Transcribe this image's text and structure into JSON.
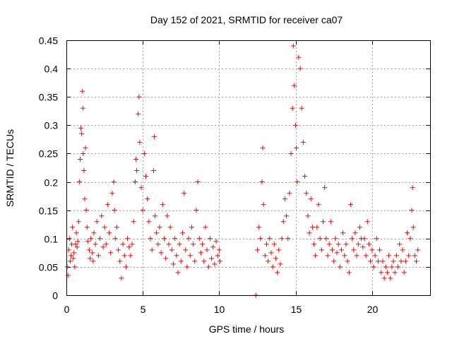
{
  "chart_data": {
    "type": "scatter",
    "title": "Day 152 of 2021, SRMTID for receiver ca07",
    "xlabel": "GPS time / hours",
    "ylabel": "SRMTID / TECUs",
    "xlim": [
      0,
      23.8
    ],
    "ylim": [
      0,
      0.45
    ],
    "xticks": [
      0,
      5,
      10,
      15,
      20
    ],
    "xtick_labels": [
      "0",
      "5",
      "10",
      "15",
      "20"
    ],
    "yticks": [
      0,
      0.05,
      0.1,
      0.15,
      0.2,
      0.25,
      0.3,
      0.35,
      0.4,
      0.45
    ],
    "ytick_labels": [
      "0",
      "0.05",
      "0.1",
      "0.15",
      "0.2",
      "0.25",
      "0.3",
      "0.35",
      "0.4",
      "0.45"
    ],
    "grid": true,
    "marker": "plus",
    "color": "#ff0000",
    "series": [
      {
        "name": "SRMTID",
        "points": [
          [
            0.05,
            0.05
          ],
          [
            0.1,
            0.035
          ],
          [
            0.15,
            0.08
          ],
          [
            0.2,
            0.1
          ],
          [
            0.25,
            0.06
          ],
          [
            0.3,
            0.07
          ],
          [
            0.35,
            0.09
          ],
          [
            0.4,
            0.12
          ],
          [
            0.45,
            0.065
          ],
          [
            0.5,
            0.075
          ],
          [
            0.55,
            0.05
          ],
          [
            0.6,
            0.09
          ],
          [
            0.65,
            0.11
          ],
          [
            0.7,
            0.085
          ],
          [
            0.75,
            0.095
          ],
          [
            0.8,
            0.13
          ],
          [
            0.85,
            0.2
          ],
          [
            0.9,
            0.24
          ],
          [
            0.95,
            0.295
          ],
          [
            1.0,
            0.285
          ],
          [
            1.05,
            0.36
          ],
          [
            1.08,
            0.33
          ],
          [
            1.1,
            0.25
          ],
          [
            1.15,
            0.22
          ],
          [
            1.2,
            0.17
          ],
          [
            1.25,
            0.26
          ],
          [
            1.3,
            0.15
          ],
          [
            1.35,
            0.12
          ],
          [
            1.4,
            0.095
          ],
          [
            1.5,
            0.08
          ],
          [
            1.55,
            0.065
          ],
          [
            1.6,
            0.1
          ],
          [
            1.7,
            0.075
          ],
          [
            1.75,
            0.06
          ],
          [
            1.8,
            0.11
          ],
          [
            1.9,
            0.09
          ],
          [
            2.0,
            0.13
          ],
          [
            2.1,
            0.07
          ],
          [
            2.2,
            0.1
          ],
          [
            2.3,
            0.14
          ],
          [
            2.4,
            0.085
          ],
          [
            2.5,
            0.12
          ],
          [
            2.6,
            0.09
          ],
          [
            2.7,
            0.16
          ],
          [
            2.8,
            0.11
          ],
          [
            2.9,
            0.075
          ],
          [
            3.0,
            0.18
          ],
          [
            3.1,
            0.2
          ],
          [
            3.15,
            0.15
          ],
          [
            3.2,
            0.1
          ],
          [
            3.3,
            0.12
          ],
          [
            3.4,
            0.08
          ],
          [
            3.5,
            0.06
          ],
          [
            3.6,
            0.03
          ],
          [
            3.7,
            0.09
          ],
          [
            3.8,
            0.07
          ],
          [
            3.9,
            0.05
          ],
          [
            4.0,
            0.1
          ],
          [
            4.1,
            0.085
          ],
          [
            4.2,
            0.07
          ],
          [
            4.3,
            0.09
          ],
          [
            4.4,
            0.13
          ],
          [
            4.5,
            0.2
          ],
          [
            4.55,
            0.24
          ],
          [
            4.6,
            0.22
          ],
          [
            4.7,
            0.32
          ],
          [
            4.75,
            0.35
          ],
          [
            4.8,
            0.27
          ],
          [
            4.9,
            0.19
          ],
          [
            5.0,
            0.15
          ],
          [
            5.1,
            0.25
          ],
          [
            5.2,
            0.21
          ],
          [
            5.3,
            0.17
          ],
          [
            5.4,
            0.13
          ],
          [
            5.5,
            0.1
          ],
          [
            5.6,
            0.08
          ],
          [
            5.7,
            0.22
          ],
          [
            5.75,
            0.28
          ],
          [
            5.8,
            0.14
          ],
          [
            5.9,
            0.11
          ],
          [
            6.0,
            0.09
          ],
          [
            6.1,
            0.12
          ],
          [
            6.2,
            0.075
          ],
          [
            6.3,
            0.16
          ],
          [
            6.4,
            0.1
          ],
          [
            6.5,
            0.065
          ],
          [
            6.6,
            0.14
          ],
          [
            6.7,
            0.09
          ],
          [
            6.8,
            0.12
          ],
          [
            6.9,
            0.08
          ],
          [
            7.0,
            0.055
          ],
          [
            7.1,
            0.1
          ],
          [
            7.2,
            0.07
          ],
          [
            7.3,
            0.04
          ],
          [
            7.4,
            0.09
          ],
          [
            7.5,
            0.06
          ],
          [
            7.6,
            0.11
          ],
          [
            7.7,
            0.18
          ],
          [
            7.8,
            0.08
          ],
          [
            7.9,
            0.05
          ],
          [
            8.0,
            0.1
          ],
          [
            8.1,
            0.07
          ],
          [
            8.2,
            0.12
          ],
          [
            8.3,
            0.09
          ],
          [
            8.4,
            0.06
          ],
          [
            8.5,
            0.15
          ],
          [
            8.6,
            0.2
          ],
          [
            8.7,
            0.1
          ],
          [
            8.8,
            0.075
          ],
          [
            8.9,
            0.09
          ],
          [
            9.0,
            0.06
          ],
          [
            9.1,
            0.12
          ],
          [
            9.2,
            0.08
          ],
          [
            9.3,
            0.05
          ],
          [
            9.4,
            0.1
          ],
          [
            9.5,
            0.065
          ],
          [
            9.6,
            0.085
          ],
          [
            9.7,
            0.055
          ],
          [
            9.8,
            0.095
          ],
          [
            9.9,
            0.07
          ],
          [
            10.0,
            0.08
          ],
          [
            10.05,
            0.06
          ],
          [
            12.4,
            0.0
          ],
          [
            12.5,
            0.08
          ],
          [
            12.6,
            0.12
          ],
          [
            12.7,
            0.1
          ],
          [
            12.8,
            0.2
          ],
          [
            12.85,
            0.26
          ],
          [
            12.9,
            0.16
          ],
          [
            13.0,
            0.07
          ],
          [
            13.1,
            0.09
          ],
          [
            13.2,
            0.06
          ],
          [
            13.3,
            0.1
          ],
          [
            13.4,
            0.075
          ],
          [
            13.5,
            0.05
          ],
          [
            13.6,
            0.09
          ],
          [
            13.7,
            0.065
          ],
          [
            13.8,
            0.04
          ],
          [
            13.9,
            0.08
          ],
          [
            14.0,
            0.055
          ],
          [
            14.1,
            0.1
          ],
          [
            14.2,
            0.13
          ],
          [
            14.3,
            0.17
          ],
          [
            14.4,
            0.14
          ],
          [
            14.5,
            0.1
          ],
          [
            14.6,
            0.18
          ],
          [
            14.7,
            0.25
          ],
          [
            14.8,
            0.33
          ],
          [
            14.85,
            0.44
          ],
          [
            14.9,
            0.37
          ],
          [
            15.0,
            0.3
          ],
          [
            15.05,
            0.26
          ],
          [
            15.1,
            0.2
          ],
          [
            15.2,
            0.42
          ],
          [
            15.3,
            0.4
          ],
          [
            15.4,
            0.33
          ],
          [
            15.5,
            0.27
          ],
          [
            15.6,
            0.21
          ],
          [
            15.7,
            0.18
          ],
          [
            15.8,
            0.14
          ],
          [
            15.9,
            0.11
          ],
          [
            16.0,
            0.17
          ],
          [
            16.1,
            0.12
          ],
          [
            16.2,
            0.09
          ],
          [
            16.3,
            0.07
          ],
          [
            16.4,
            0.12
          ],
          [
            16.5,
            0.16
          ],
          [
            16.6,
            0.1
          ],
          [
            16.7,
            0.08
          ],
          [
            16.8,
            0.13
          ],
          [
            16.9,
            0.19
          ],
          [
            17.0,
            0.1
          ],
          [
            17.1,
            0.07
          ],
          [
            17.2,
            0.09
          ],
          [
            17.3,
            0.13
          ],
          [
            17.4,
            0.08
          ],
          [
            17.5,
            0.06
          ],
          [
            17.6,
            0.1
          ],
          [
            17.7,
            0.075
          ],
          [
            17.8,
            0.09
          ],
          [
            17.9,
            0.05
          ],
          [
            18.0,
            0.08
          ],
          [
            18.1,
            0.11
          ],
          [
            18.2,
            0.07
          ],
          [
            18.3,
            0.09
          ],
          [
            18.4,
            0.06
          ],
          [
            18.5,
            0.04
          ],
          [
            18.6,
            0.16
          ],
          [
            18.7,
            0.1
          ],
          [
            18.8,
            0.08
          ],
          [
            18.9,
            0.11
          ],
          [
            19.0,
            0.07
          ],
          [
            19.1,
            0.09
          ],
          [
            19.2,
            0.12
          ],
          [
            19.3,
            0.1
          ],
          [
            19.4,
            0.085
          ],
          [
            19.5,
            0.1
          ],
          [
            19.6,
            0.07
          ],
          [
            19.7,
            0.13
          ],
          [
            19.8,
            0.09
          ],
          [
            19.9,
            0.06
          ],
          [
            20.0,
            0.08
          ],
          [
            20.1,
            0.05
          ],
          [
            20.2,
            0.07
          ],
          [
            20.3,
            0.1
          ],
          [
            20.4,
            0.06
          ],
          [
            20.5,
            0.08
          ],
          [
            20.6,
            0.04
          ],
          [
            20.7,
            0.06
          ],
          [
            20.8,
            0.03
          ],
          [
            20.9,
            0.05
          ],
          [
            21.0,
            0.04
          ],
          [
            21.1,
            0.07
          ],
          [
            21.2,
            0.03
          ],
          [
            21.3,
            0.05
          ],
          [
            21.4,
            0.06
          ],
          [
            21.5,
            0.04
          ],
          [
            21.6,
            0.07
          ],
          [
            21.7,
            0.05
          ],
          [
            21.8,
            0.09
          ],
          [
            21.9,
            0.06
          ],
          [
            22.0,
            0.08
          ],
          [
            22.1,
            0.04
          ],
          [
            22.2,
            0.06
          ],
          [
            22.3,
            0.11
          ],
          [
            22.4,
            0.07
          ],
          [
            22.5,
            0.1
          ],
          [
            22.6,
            0.15
          ],
          [
            22.65,
            0.19
          ],
          [
            22.7,
            0.12
          ],
          [
            22.8,
            0.07
          ],
          [
            22.9,
            0.06
          ],
          [
            23.0,
            0.08
          ]
        ]
      }
    ]
  }
}
